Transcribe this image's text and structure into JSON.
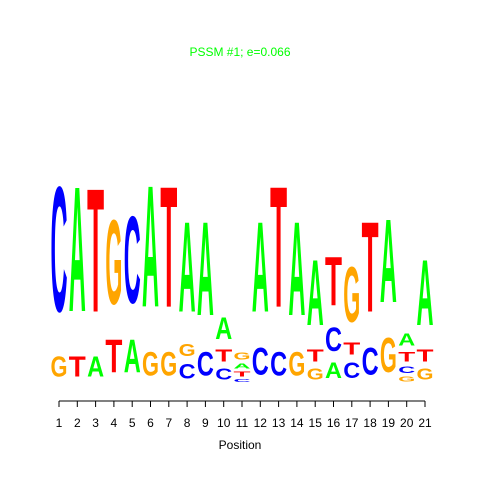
{
  "chart_data": {
    "type": "logo",
    "title": "PSSM #1; e=0.066",
    "xlabel": "Position",
    "ylim": [
      0,
      2
    ],
    "xticks": [
      1,
      2,
      3,
      4,
      5,
      6,
      7,
      8,
      9,
      10,
      11,
      12,
      13,
      14,
      15,
      16,
      17,
      18,
      19,
      20,
      21
    ],
    "colors": {
      "A": "#00ff00",
      "C": "#0000ff",
      "G": "#ffa500",
      "T": "#ff0000"
    },
    "title_color": "#00ff00",
    "columns": [
      {
        "letters": [
          "G",
          "C"
        ],
        "heights": [
          0.28,
          1.72
        ]
      },
      {
        "letters": [
          "T",
          "A"
        ],
        "heights": [
          0.28,
          1.72
        ]
      },
      {
        "letters": [
          "A",
          "T"
        ],
        "heights": [
          0.28,
          1.7
        ]
      },
      {
        "letters": [
          "T",
          "G"
        ],
        "heights": [
          0.45,
          1.16
        ]
      },
      {
        "letters": [
          "A",
          "C"
        ],
        "heights": [
          0.45,
          1.2
        ]
      },
      {
        "letters": [
          "G",
          "A"
        ],
        "heights": [
          0.33,
          1.67
        ]
      },
      {
        "letters": [
          "G",
          "T"
        ],
        "heights": [
          0.33,
          1.66
        ]
      },
      {
        "letters": [
          "C",
          "G",
          "A"
        ],
        "heights": [
          0.2,
          0.17,
          1.24
        ]
      },
      {
        "letters": [
          "C",
          "A"
        ],
        "heights": [
          0.33,
          1.29
        ]
      },
      {
        "letters": [
          "C",
          "T",
          "A"
        ],
        "heights": [
          0.15,
          0.17,
          0.3
        ]
      },
      {
        "letters": [
          "C",
          "T",
          "A",
          "G"
        ],
        "heights": [
          0.04,
          0.07,
          0.07,
          0.1
        ]
      },
      {
        "letters": [
          "C",
          "A"
        ],
        "heights": [
          0.37,
          1.24
        ]
      },
      {
        "letters": [
          "C",
          "T"
        ],
        "heights": [
          0.33,
          1.66
        ]
      },
      {
        "letters": [
          "G",
          "A"
        ],
        "heights": [
          0.33,
          1.29
        ]
      },
      {
        "letters": [
          "G",
          "T",
          "A"
        ],
        "heights": [
          0.15,
          0.17,
          0.9
        ]
      },
      {
        "letters": [
          "A",
          "C",
          "T"
        ],
        "heights": [
          0.21,
          0.33,
          0.67
        ]
      },
      {
        "letters": [
          "C",
          "T",
          "G"
        ],
        "heights": [
          0.21,
          0.17,
          0.76
        ]
      },
      {
        "letters": [
          "C",
          "T"
        ],
        "heights": [
          0.37,
          1.24
        ]
      },
      {
        "letters": [
          "G",
          "A"
        ],
        "heights": [
          0.47,
          1.14
        ]
      },
      {
        "letters": [
          "G",
          "C",
          "T",
          "A"
        ],
        "heights": [
          0.07,
          0.09,
          0.13,
          0.17
        ]
      },
      {
        "letters": [
          "G",
          "T",
          "A"
        ],
        "heights": [
          0.15,
          0.17,
          0.9
        ]
      }
    ]
  }
}
